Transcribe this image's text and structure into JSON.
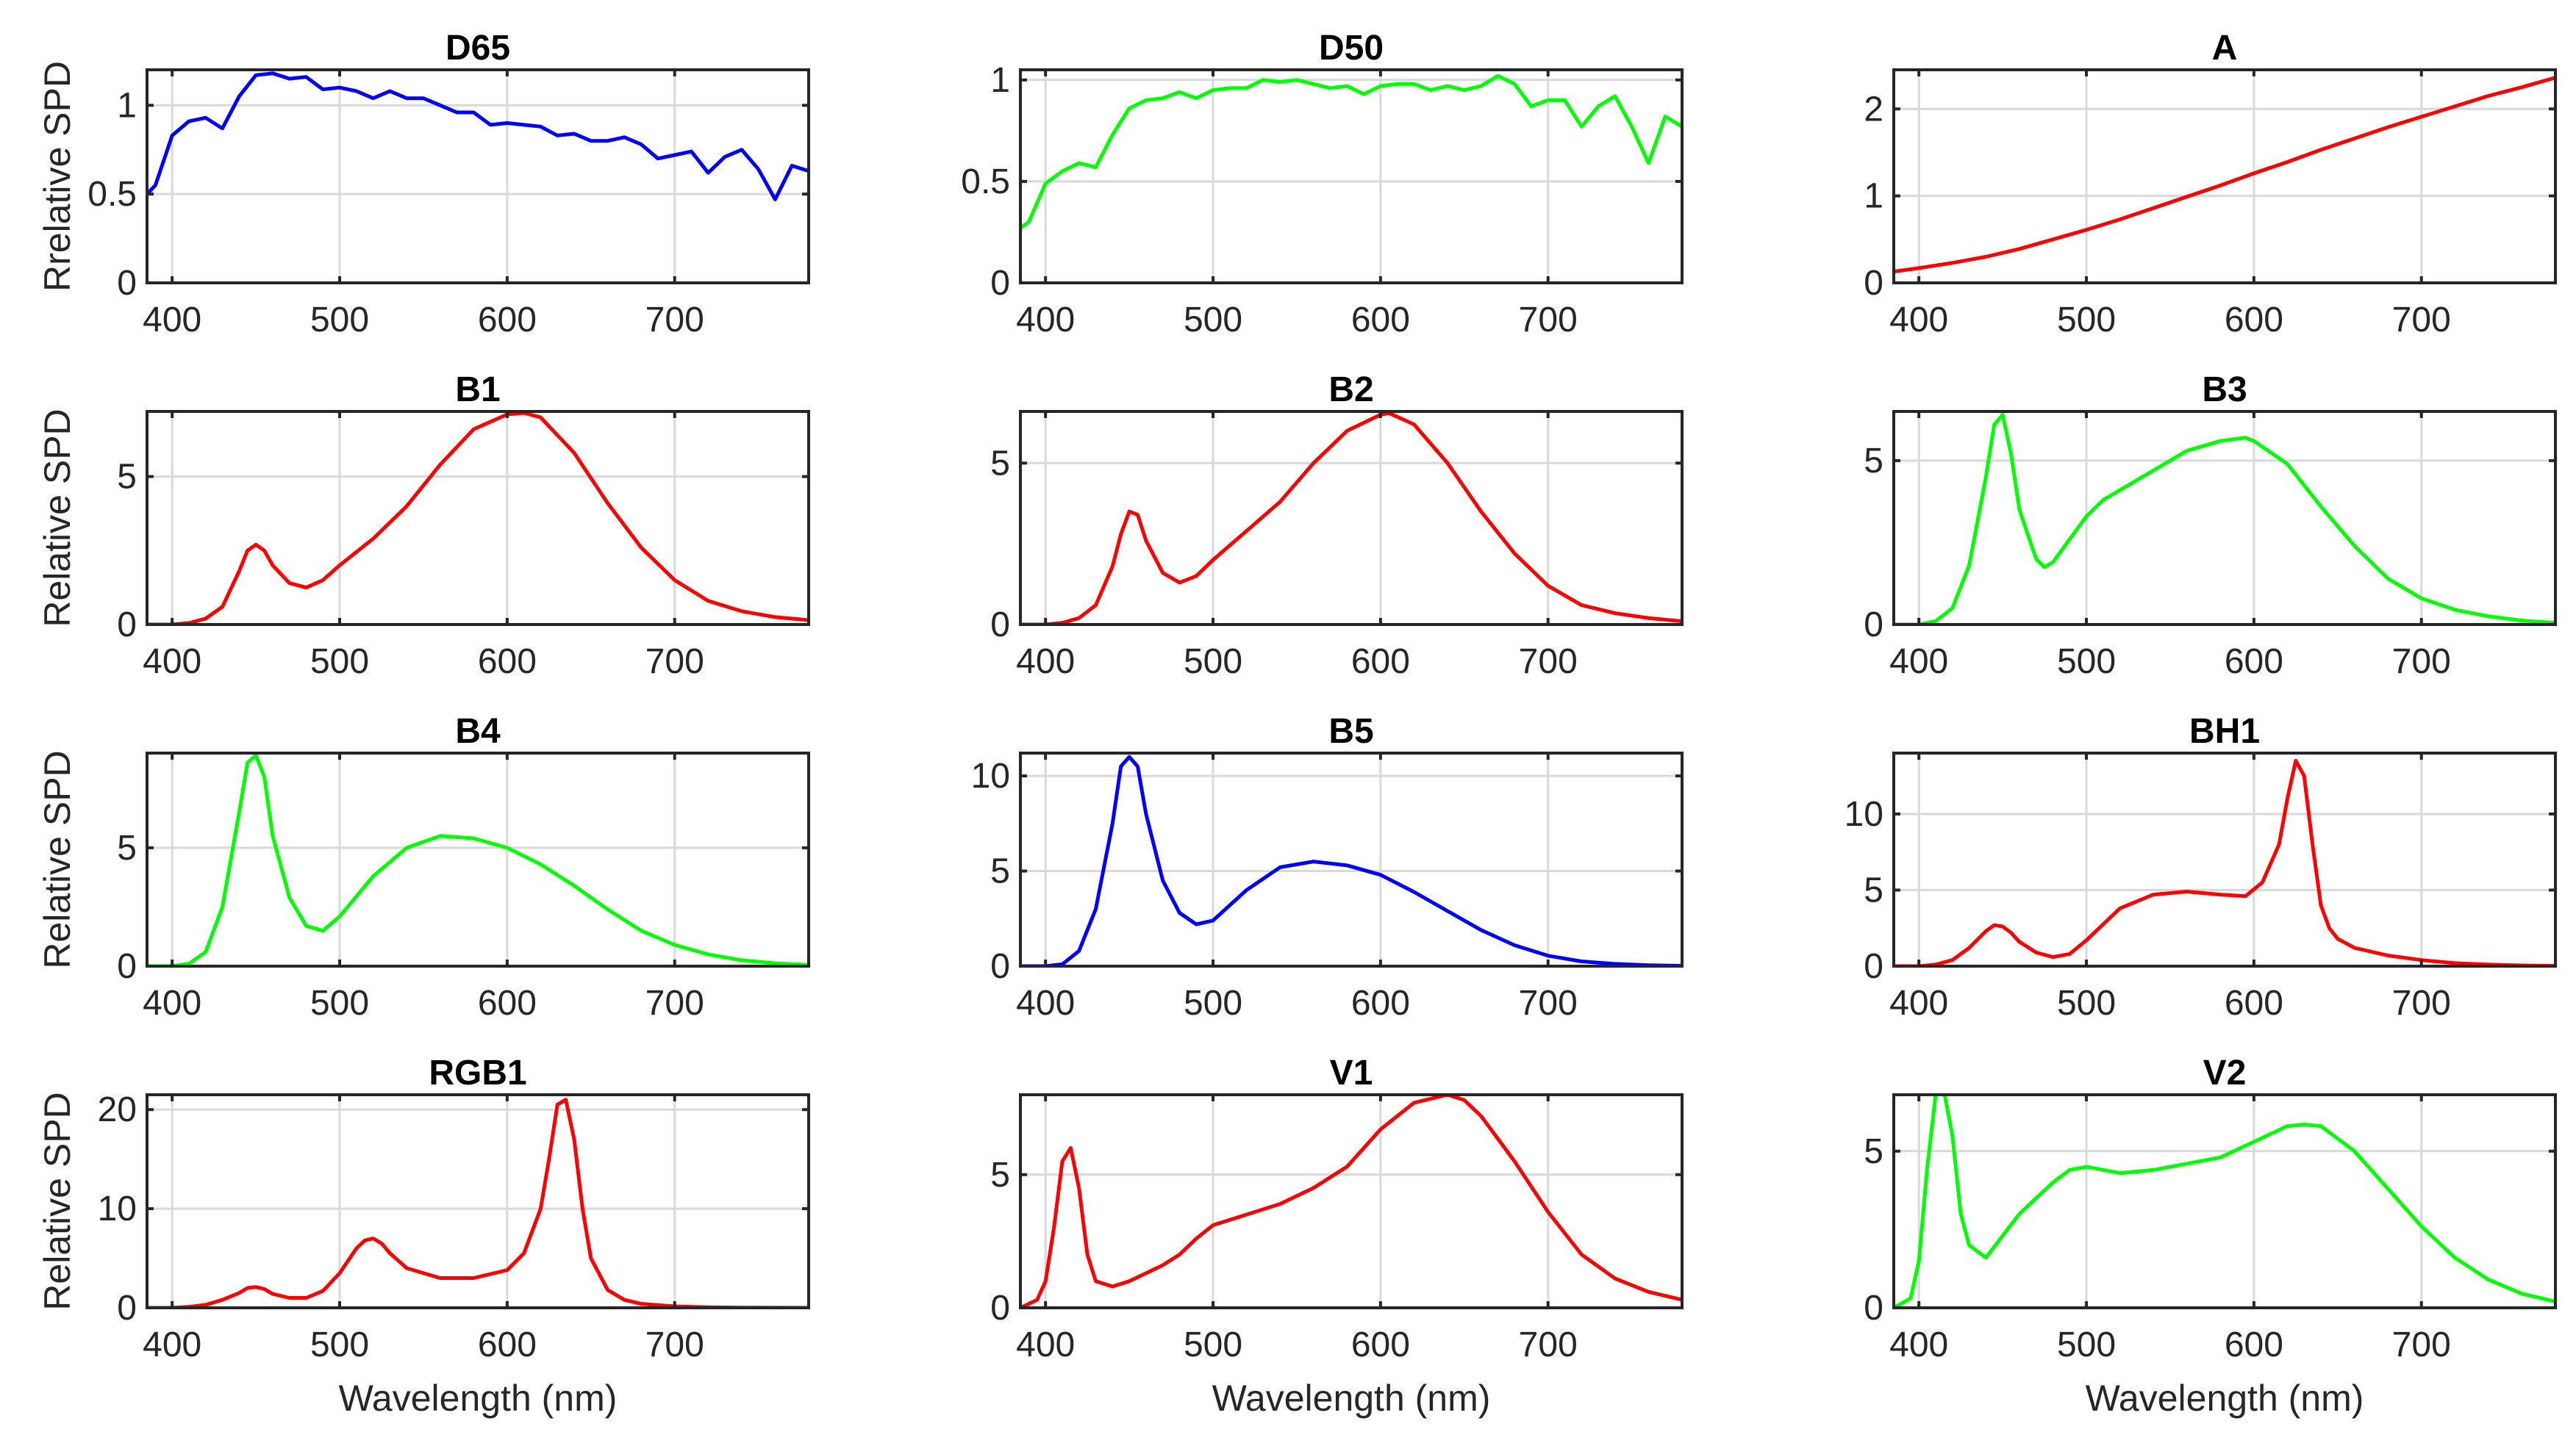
{
  "figure_title": "",
  "chart_data": [
    {
      "type": "line",
      "title": "D65",
      "ylabel": "Rrelative SPD",
      "xlabel": "",
      "xlim": [
        385,
        780
      ],
      "ylim": [
        0,
        1.2
      ],
      "xticks": [
        400,
        500,
        600,
        700
      ],
      "yticks": [
        0,
        0.5,
        1
      ],
      "ytick_labels": [
        "0",
        "0.5",
        "1"
      ],
      "color": "#0000ff",
      "x": [
        385,
        390,
        400,
        410,
        420,
        430,
        440,
        450,
        460,
        470,
        480,
        490,
        500,
        510,
        520,
        530,
        540,
        550,
        560,
        570,
        580,
        590,
        600,
        610,
        620,
        630,
        640,
        650,
        660,
        670,
        680,
        690,
        700,
        710,
        720,
        730,
        740,
        750,
        760,
        770,
        780
      ],
      "y": [
        0.5,
        0.55,
        0.83,
        0.91,
        0.93,
        0.87,
        1.05,
        1.17,
        1.18,
        1.15,
        1.16,
        1.09,
        1.1,
        1.08,
        1.04,
        1.08,
        1.04,
        1.04,
        1.0,
        0.96,
        0.96,
        0.89,
        0.9,
        0.89,
        0.88,
        0.83,
        0.84,
        0.8,
        0.8,
        0.82,
        0.78,
        0.7,
        0.72,
        0.74,
        0.62,
        0.71,
        0.75,
        0.64,
        0.47,
        0.66,
        0.63
      ]
    },
    {
      "type": "line",
      "title": "D50",
      "ylabel": "",
      "xlabel": "",
      "xlim": [
        385,
        780
      ],
      "ylim": [
        0,
        1.05
      ],
      "xticks": [
        400,
        500,
        600,
        700
      ],
      "yticks": [
        0,
        0.5,
        1
      ],
      "ytick_labels": [
        "0",
        "0.5",
        "1"
      ],
      "color": "#00ff00",
      "x": [
        385,
        390,
        400,
        410,
        420,
        430,
        440,
        450,
        460,
        470,
        480,
        490,
        500,
        510,
        520,
        530,
        540,
        550,
        560,
        570,
        580,
        590,
        600,
        610,
        620,
        630,
        640,
        650,
        660,
        670,
        680,
        690,
        700,
        710,
        720,
        730,
        740,
        750,
        760,
        770,
        780
      ],
      "y": [
        0.27,
        0.3,
        0.49,
        0.55,
        0.59,
        0.57,
        0.73,
        0.86,
        0.9,
        0.91,
        0.94,
        0.91,
        0.95,
        0.96,
        0.96,
        1.0,
        0.99,
        1.0,
        0.98,
        0.96,
        0.97,
        0.93,
        0.97,
        0.98,
        0.98,
        0.95,
        0.97,
        0.95,
        0.97,
        1.02,
        0.98,
        0.87,
        0.9,
        0.9,
        0.77,
        0.87,
        0.92,
        0.77,
        0.59,
        0.82,
        0.77
      ]
    },
    {
      "type": "line",
      "title": "A",
      "ylabel": "",
      "xlabel": "",
      "xlim": [
        385,
        780
      ],
      "ylim": [
        0,
        2.45
      ],
      "xticks": [
        400,
        500,
        600,
        700
      ],
      "yticks": [
        0,
        1,
        2
      ],
      "ytick_labels": [
        "0",
        "1",
        "2"
      ],
      "color": "#ff0000",
      "x": [
        385,
        400,
        420,
        440,
        460,
        480,
        500,
        520,
        540,
        560,
        580,
        600,
        620,
        640,
        660,
        680,
        700,
        720,
        740,
        760,
        780
      ],
      "y": [
        0.13,
        0.17,
        0.23,
        0.3,
        0.39,
        0.5,
        0.61,
        0.73,
        0.86,
        0.99,
        1.12,
        1.26,
        1.39,
        1.53,
        1.66,
        1.79,
        1.91,
        2.03,
        2.15,
        2.25,
        2.36
      ]
    },
    {
      "type": "line",
      "title": "B1",
      "ylabel": "Relative SPD",
      "xlabel": "",
      "xlim": [
        385,
        780
      ],
      "ylim": [
        0,
        7.2
      ],
      "xticks": [
        400,
        500,
        600,
        700
      ],
      "yticks": [
        0,
        5
      ],
      "ytick_labels": [
        "0",
        "5"
      ],
      "color": "#ff0000",
      "x": [
        385,
        400,
        410,
        420,
        430,
        440,
        445,
        450,
        455,
        460,
        470,
        480,
        490,
        500,
        520,
        540,
        560,
        580,
        600,
        610,
        620,
        640,
        660,
        680,
        700,
        720,
        740,
        760,
        780
      ],
      "y": [
        0,
        0,
        0.05,
        0.2,
        0.6,
        1.8,
        2.5,
        2.7,
        2.5,
        2.0,
        1.4,
        1.25,
        1.5,
        2.0,
        2.9,
        4.0,
        5.4,
        6.6,
        7.1,
        7.15,
        7.0,
        5.8,
        4.1,
        2.6,
        1.5,
        0.8,
        0.45,
        0.25,
        0.15
      ]
    },
    {
      "type": "line",
      "title": "B2",
      "ylabel": "",
      "xlabel": "",
      "xlim": [
        385,
        780
      ],
      "ylim": [
        0,
        6.6
      ],
      "xticks": [
        400,
        500,
        600,
        700
      ],
      "yticks": [
        0,
        5
      ],
      "ytick_labels": [
        "0",
        "5"
      ],
      "color": "#ff0000",
      "x": [
        385,
        400,
        410,
        420,
        430,
        440,
        445,
        450,
        455,
        460,
        470,
        480,
        490,
        500,
        520,
        540,
        560,
        580,
        600,
        605,
        620,
        640,
        660,
        680,
        700,
        720,
        740,
        760,
        780
      ],
      "y": [
        0,
        0,
        0.05,
        0.2,
        0.6,
        1.8,
        2.8,
        3.5,
        3.4,
        2.6,
        1.6,
        1.3,
        1.5,
        2.0,
        2.9,
        3.8,
        5.0,
        6.0,
        6.5,
        6.55,
        6.2,
        5.0,
        3.5,
        2.2,
        1.2,
        0.6,
        0.35,
        0.2,
        0.1
      ]
    },
    {
      "type": "line",
      "title": "B3",
      "ylabel": "",
      "xlabel": "",
      "xlim": [
        385,
        780
      ],
      "ylim": [
        0,
        6.5
      ],
      "xticks": [
        400,
        500,
        600,
        700
      ],
      "yticks": [
        0,
        5
      ],
      "ytick_labels": [
        "0",
        "5"
      ],
      "color": "#00ff00",
      "x": [
        385,
        400,
        410,
        420,
        430,
        440,
        445,
        450,
        455,
        460,
        470,
        475,
        480,
        490,
        500,
        510,
        520,
        540,
        560,
        580,
        595,
        600,
        620,
        640,
        660,
        680,
        700,
        720,
        740,
        760,
        780
      ],
      "y": [
        0,
        0,
        0.1,
        0.5,
        1.8,
        4.5,
        6.1,
        6.4,
        5.2,
        3.5,
        2.0,
        1.75,
        1.9,
        2.6,
        3.3,
        3.8,
        4.1,
        4.7,
        5.3,
        5.6,
        5.7,
        5.6,
        4.9,
        3.6,
        2.4,
        1.4,
        0.8,
        0.45,
        0.25,
        0.12,
        0.05
      ]
    },
    {
      "type": "line",
      "title": "B4",
      "ylabel": "Relative SPD",
      "xlabel": "",
      "xlim": [
        385,
        780
      ],
      "ylim": [
        0,
        9
      ],
      "xticks": [
        400,
        500,
        600,
        700
      ],
      "yticks": [
        0,
        5
      ],
      "ytick_labels": [
        "0",
        "5"
      ],
      "color": "#00ff00",
      "x": [
        385,
        400,
        410,
        420,
        430,
        440,
        445,
        450,
        455,
        460,
        470,
        480,
        490,
        500,
        520,
        540,
        560,
        580,
        600,
        620,
        640,
        660,
        680,
        700,
        720,
        740,
        760,
        780
      ],
      "y": [
        0,
        0,
        0.1,
        0.6,
        2.5,
        6.5,
        8.6,
        8.9,
        8.0,
        5.5,
        2.9,
        1.7,
        1.5,
        2.1,
        3.8,
        5.0,
        5.5,
        5.4,
        5.0,
        4.3,
        3.4,
        2.4,
        1.5,
        0.9,
        0.5,
        0.25,
        0.12,
        0.05
      ]
    },
    {
      "type": "line",
      "title": "B5",
      "ylabel": "",
      "xlabel": "",
      "xlim": [
        385,
        780
      ],
      "ylim": [
        0,
        11.2
      ],
      "xticks": [
        400,
        500,
        600,
        700
      ],
      "yticks": [
        0,
        5,
        10
      ],
      "ytick_labels": [
        "0",
        "5",
        "10"
      ],
      "color": "#0000ff",
      "x": [
        385,
        400,
        410,
        420,
        430,
        440,
        445,
        450,
        455,
        460,
        470,
        480,
        490,
        500,
        520,
        540,
        560,
        580,
        600,
        620,
        640,
        660,
        680,
        700,
        720,
        740,
        760,
        780
      ],
      "y": [
        0,
        0,
        0.1,
        0.8,
        3.0,
        7.5,
        10.5,
        11.0,
        10.5,
        8.0,
        4.5,
        2.8,
        2.2,
        2.4,
        4.0,
        5.2,
        5.5,
        5.3,
        4.8,
        3.9,
        2.9,
        1.9,
        1.1,
        0.55,
        0.25,
        0.12,
        0.05,
        0.02
      ]
    },
    {
      "type": "line",
      "title": "BH1",
      "ylabel": "",
      "xlabel": "",
      "xlim": [
        385,
        780
      ],
      "ylim": [
        0,
        14
      ],
      "xticks": [
        400,
        500,
        600,
        700
      ],
      "yticks": [
        0,
        5,
        10
      ],
      "ytick_labels": [
        "0",
        "5",
        "10"
      ],
      "color": "#ff0000",
      "x": [
        385,
        400,
        410,
        420,
        430,
        440,
        445,
        450,
        455,
        460,
        470,
        480,
        490,
        500,
        520,
        540,
        560,
        580,
        595,
        605,
        615,
        620,
        625,
        630,
        635,
        640,
        645,
        650,
        660,
        680,
        700,
        720,
        740,
        760,
        780
      ],
      "y": [
        0,
        0,
        0.1,
        0.4,
        1.2,
        2.3,
        2.7,
        2.6,
        2.2,
        1.6,
        0.9,
        0.6,
        0.8,
        1.7,
        3.8,
        4.7,
        4.9,
        4.7,
        4.6,
        5.5,
        8.0,
        11.0,
        13.5,
        12.5,
        8.0,
        4.0,
        2.5,
        1.8,
        1.2,
        0.7,
        0.4,
        0.2,
        0.1,
        0.05,
        0.02
      ]
    },
    {
      "type": "line",
      "title": "RGB1",
      "ylabel": "Relative SPD",
      "xlabel": "Wavelength (nm)",
      "xlim": [
        385,
        780
      ],
      "ylim": [
        0,
        21.5
      ],
      "xticks": [
        400,
        500,
        600,
        700
      ],
      "yticks": [
        0,
        10,
        20
      ],
      "ytick_labels": [
        "0",
        "10",
        "20"
      ],
      "color": "#ff0000",
      "x": [
        385,
        400,
        410,
        420,
        430,
        440,
        445,
        450,
        455,
        460,
        470,
        480,
        490,
        500,
        510,
        515,
        520,
        525,
        530,
        540,
        560,
        580,
        600,
        610,
        620,
        625,
        630,
        635,
        640,
        645,
        650,
        660,
        670,
        680,
        700,
        720,
        740,
        760,
        780
      ],
      "y": [
        0,
        0,
        0.1,
        0.3,
        0.8,
        1.5,
        2.0,
        2.1,
        1.9,
        1.4,
        1.0,
        1.0,
        1.7,
        3.5,
        6.0,
        6.8,
        7.0,
        6.5,
        5.5,
        4.0,
        3.0,
        3.0,
        3.8,
        5.5,
        10.0,
        15.0,
        20.5,
        21.0,
        17.0,
        10.0,
        5.0,
        1.8,
        0.8,
        0.4,
        0.15,
        0.05,
        0.02,
        0.01,
        0
      ]
    },
    {
      "type": "line",
      "title": "V1",
      "ylabel": "",
      "xlabel": "Wavelength (nm)",
      "xlim": [
        385,
        780
      ],
      "ylim": [
        0,
        8
      ],
      "xticks": [
        400,
        500,
        600,
        700
      ],
      "yticks": [
        0,
        5
      ],
      "ytick_labels": [
        "0",
        "5"
      ],
      "color": "#ff0000",
      "x": [
        385,
        395,
        400,
        405,
        410,
        415,
        420,
        425,
        430,
        440,
        450,
        460,
        470,
        480,
        490,
        500,
        520,
        540,
        560,
        580,
        600,
        620,
        640,
        650,
        660,
        680,
        700,
        720,
        740,
        760,
        780
      ],
      "y": [
        0,
        0.3,
        1.0,
        3.0,
        5.5,
        6.0,
        4.5,
        2.0,
        1.0,
        0.8,
        1.0,
        1.3,
        1.6,
        2.0,
        2.6,
        3.1,
        3.5,
        3.9,
        4.5,
        5.3,
        6.7,
        7.7,
        8.0,
        7.8,
        7.2,
        5.5,
        3.6,
        2.0,
        1.1,
        0.6,
        0.3
      ]
    },
    {
      "type": "line",
      "title": "V2",
      "ylabel": "",
      "xlabel": "Wavelength (nm)",
      "xlim": [
        385,
        780
      ],
      "ylim": [
        0,
        6.8
      ],
      "xticks": [
        400,
        500,
        600,
        700
      ],
      "yticks": [
        0,
        5
      ],
      "ytick_labels": [
        "0",
        "5"
      ],
      "color": "#00ff00",
      "x": [
        385,
        395,
        400,
        405,
        410,
        415,
        420,
        425,
        430,
        440,
        450,
        460,
        470,
        480,
        490,
        500,
        520,
        540,
        560,
        580,
        600,
        620,
        630,
        640,
        660,
        680,
        700,
        720,
        740,
        760,
        780
      ],
      "y": [
        0,
        0.3,
        1.5,
        4.5,
        6.8,
        6.9,
        5.5,
        3.0,
        2.0,
        1.6,
        2.3,
        3.0,
        3.5,
        4.0,
        4.4,
        4.5,
        4.3,
        4.4,
        4.6,
        4.8,
        5.3,
        5.8,
        5.85,
        5.8,
        5.0,
        3.8,
        2.6,
        1.6,
        0.9,
        0.45,
        0.2
      ]
    }
  ]
}
